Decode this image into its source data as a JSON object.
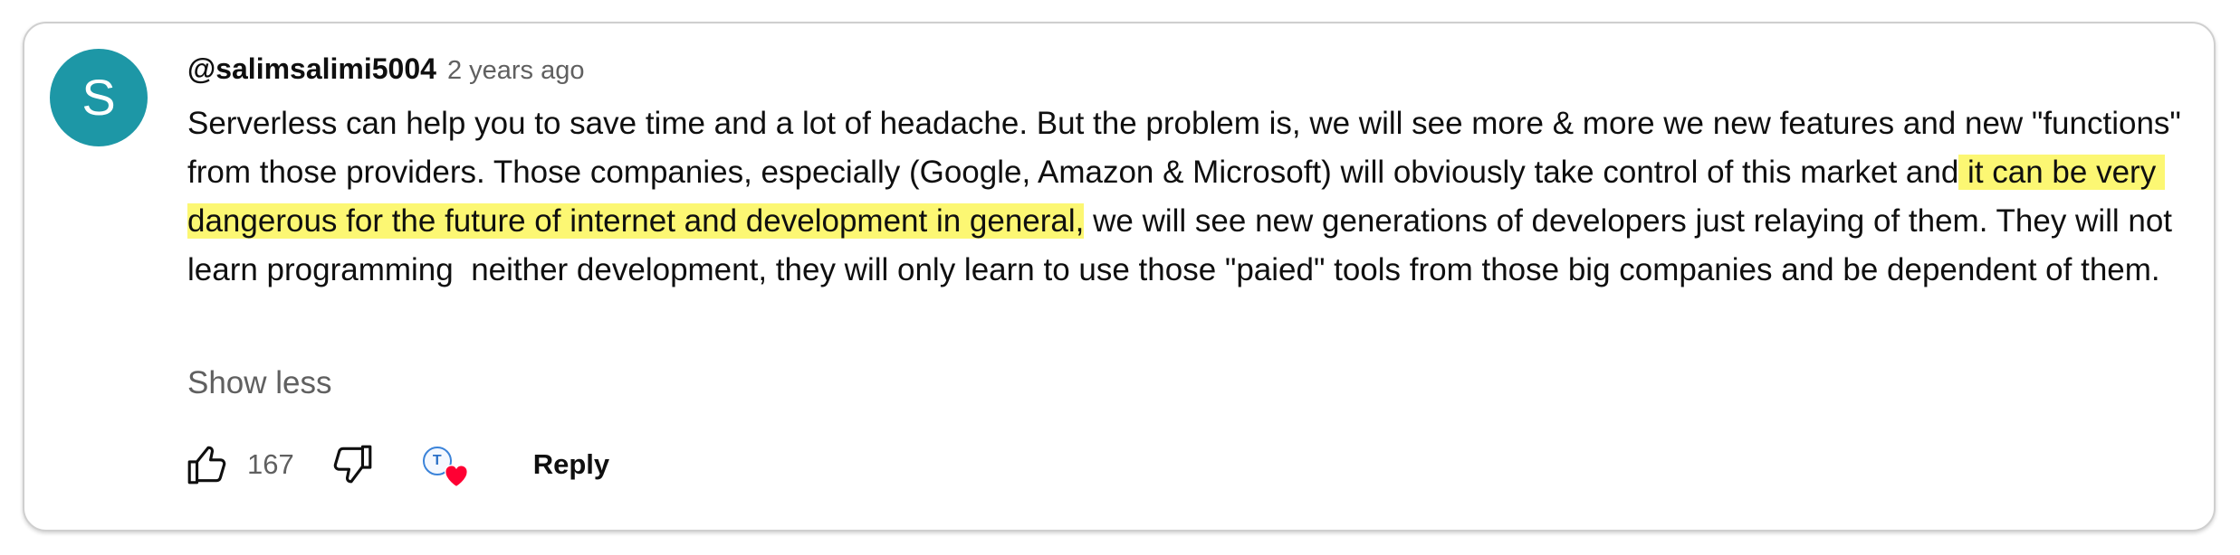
{
  "comment": {
    "avatar_letter": "S",
    "avatar_color": "#1d97a6",
    "author": "@salimsalimi5004",
    "time": "2 years ago",
    "text_before": "Serverless can help you to save time and a lot of headache. But the problem is, we will see more & more we new features and new \"functions\" from those providers. Those companies, especially (Google, Amazon & Microsoft) will obviously take control of this market and",
    "text_highlight": " it can be very dangerous for the future of internet and development in general,",
    "text_after": " we will see new generations of developers just relaying of them. They will not learn programming  neither development, they will only learn to use those \"paied\" tools from those big companies and be dependent of them.",
    "highlight_color": "#fcf773",
    "show_less_label": "Show less"
  },
  "actions": {
    "like_icon": "thumb-up-icon",
    "like_count": "167",
    "dislike_icon": "thumb-down-icon",
    "creator_heart_icon": "creator-heart-icon",
    "creator_initial": "T",
    "heart_color": "#ff0033",
    "reply_label": "Reply"
  }
}
